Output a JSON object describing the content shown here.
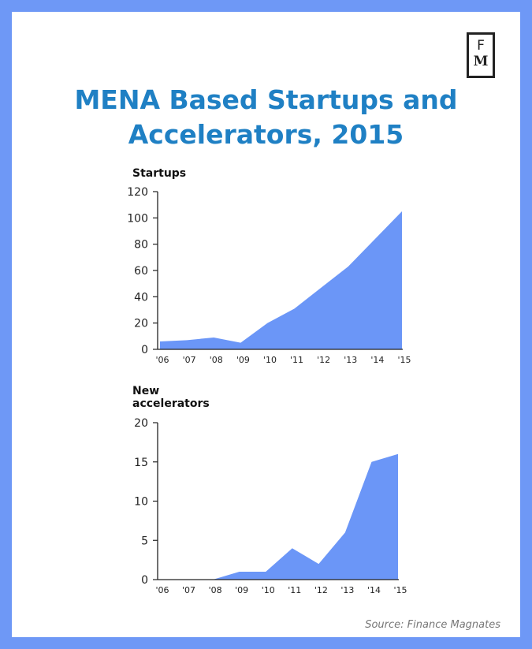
{
  "title_line1": "MENA Based Startups and",
  "title_line2": "Accelerators, 2015",
  "logo": {
    "top": "F",
    "bottom": "M"
  },
  "source": "Source: Finance Magnates",
  "colors": {
    "frame": "#6e98f6",
    "fill": "#6b96f7",
    "title": "#1f80c4"
  },
  "chart_data": [
    {
      "type": "area",
      "ylabel": "Startups",
      "categories": [
        "'06",
        "'07",
        "'08",
        "'09",
        "'10",
        "'11",
        "'12",
        "'13",
        "'14",
        "'15"
      ],
      "values": [
        6,
        7,
        9,
        5,
        20,
        31,
        47,
        63,
        84,
        105
      ],
      "ylim": [
        0,
        120
      ],
      "yticks": [
        "0",
        "20",
        "40",
        "60",
        "80",
        "100",
        "120"
      ]
    },
    {
      "type": "area",
      "ylabel": "New accelerators",
      "ylabel_lines": [
        "New",
        "accelerators"
      ],
      "categories": [
        "'06",
        "'07",
        "'08",
        "'09",
        "'10",
        "'11",
        "'12",
        "'13",
        "'14",
        "'15"
      ],
      "values": [
        0,
        0,
        0,
        1,
        1,
        4,
        2,
        6,
        15,
        16
      ],
      "ylim": [
        0,
        20
      ],
      "yticks": [
        "0",
        "5",
        "10",
        "15",
        "20"
      ]
    }
  ]
}
